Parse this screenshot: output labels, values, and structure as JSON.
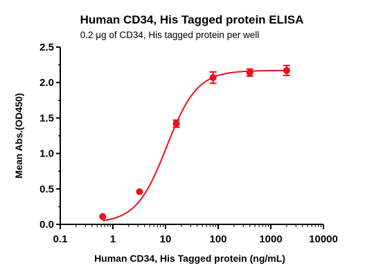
{
  "chart_data": {
    "type": "scatter",
    "title": "Human CD34, His Tagged protein ELISA",
    "subtitle": "0.2 μg of CD34, His tagged protein per well",
    "xlabel": "Human CD34, His Tagged protein (ng/mL)",
    "ylabel": "Mean Abs.(OD450)",
    "x_scale": "log",
    "xlim": [
      0.1,
      10000
    ],
    "ylim": [
      0.0,
      2.5
    ],
    "x_ticks": [
      "0.1",
      "1",
      "10",
      "100",
      "1000",
      "10000"
    ],
    "y_ticks": [
      "0.0",
      "0.5",
      "1.0",
      "1.5",
      "2.0",
      "2.5"
    ],
    "grid": false,
    "color": "#e8101c",
    "series": [
      {
        "x": [
          0.64,
          3.2,
          16,
          80,
          400,
          2000
        ],
        "y": [
          0.11,
          0.46,
          1.42,
          2.07,
          2.14,
          2.17
        ],
        "error": [
          0.0,
          0.0,
          0.05,
          0.08,
          0.05,
          0.07
        ],
        "fit": "four-parameter logistic sigmoid"
      }
    ]
  }
}
